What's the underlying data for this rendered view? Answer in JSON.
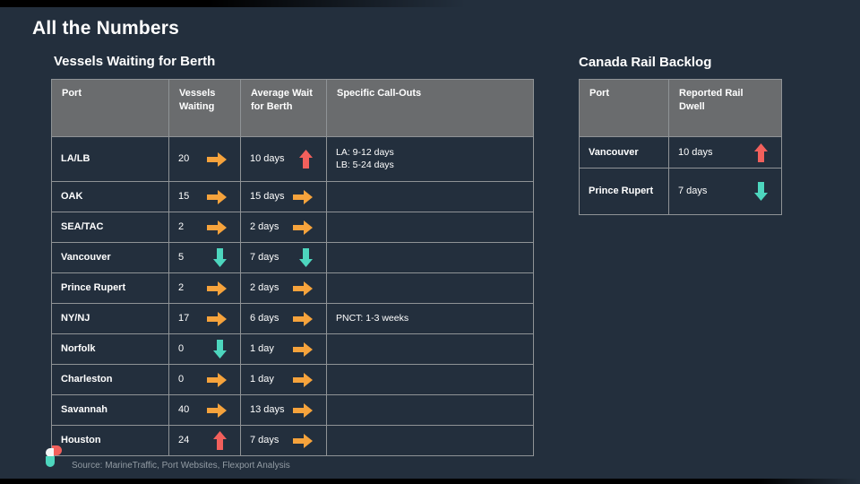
{
  "slide": {
    "title": "All the Numbers",
    "source": "Source: MarineTraffic, Port Websites, Flexport Analysis"
  },
  "colors": {
    "background": "#232F3D",
    "table_header_bg": "#6A6C6E",
    "table_border": "#8F9396",
    "arrow_flat": "#F6A33C",
    "arrow_up": "#F2605C",
    "arrow_down": "#4DD6BE",
    "source_text": "#939CA4"
  },
  "icons": {
    "flat": "right-block-arrow",
    "up": "up-block-arrow",
    "down": "down-block-arrow",
    "logo": "flexport-pinwheel-mark"
  },
  "vessels_table": {
    "title": "Vessels Waiting for Berth",
    "headers": [
      "Port",
      "Vessels Waiting",
      "Average Wait for Berth",
      "Specific Call-Outs"
    ],
    "rows": [
      {
        "port": "LA/LB",
        "vessels": "20",
        "vessels_trend": "flat",
        "wait": "10 days",
        "wait_trend": "up",
        "callouts": [
          "LA: 9-12 days",
          "LB: 5-24 days"
        ]
      },
      {
        "port": "OAK",
        "vessels": "15",
        "vessels_trend": "flat",
        "wait": "15 days",
        "wait_trend": "flat",
        "callouts": []
      },
      {
        "port": "SEA/TAC",
        "vessels": "2",
        "vessels_trend": "flat",
        "wait": "2 days",
        "wait_trend": "flat",
        "callouts": []
      },
      {
        "port": "Vancouver",
        "vessels": "5",
        "vessels_trend": "down",
        "wait": "7 days",
        "wait_trend": "down",
        "callouts": []
      },
      {
        "port": "Prince Rupert",
        "vessels": "2",
        "vessels_trend": "flat",
        "wait": "2 days",
        "wait_trend": "flat",
        "callouts": []
      },
      {
        "port": "NY/NJ",
        "vessels": "17",
        "vessels_trend": "flat",
        "wait": "6 days",
        "wait_trend": "flat",
        "callouts": [
          "PNCT: 1-3 weeks"
        ]
      },
      {
        "port": "Norfolk",
        "vessels": "0",
        "vessels_trend": "down",
        "wait": "1 day",
        "wait_trend": "flat",
        "callouts": []
      },
      {
        "port": "Charleston",
        "vessels": "0",
        "vessels_trend": "flat",
        "wait": "1 day",
        "wait_trend": "flat",
        "callouts": []
      },
      {
        "port": "Savannah",
        "vessels": "40",
        "vessels_trend": "flat",
        "wait": "13 days",
        "wait_trend": "flat",
        "callouts": []
      },
      {
        "port": "Houston",
        "vessels": "24",
        "vessels_trend": "up",
        "wait": "7 days",
        "wait_trend": "flat",
        "callouts": []
      }
    ]
  },
  "rail_table": {
    "title": "Canada Rail Backlog",
    "headers": [
      "Port",
      "Reported Rail Dwell"
    ],
    "rows": [
      {
        "port": "Vancouver",
        "dwell": "10 days",
        "trend": "up"
      },
      {
        "port": "Prince Rupert",
        "dwell": "7 days",
        "trend": "down"
      }
    ]
  }
}
